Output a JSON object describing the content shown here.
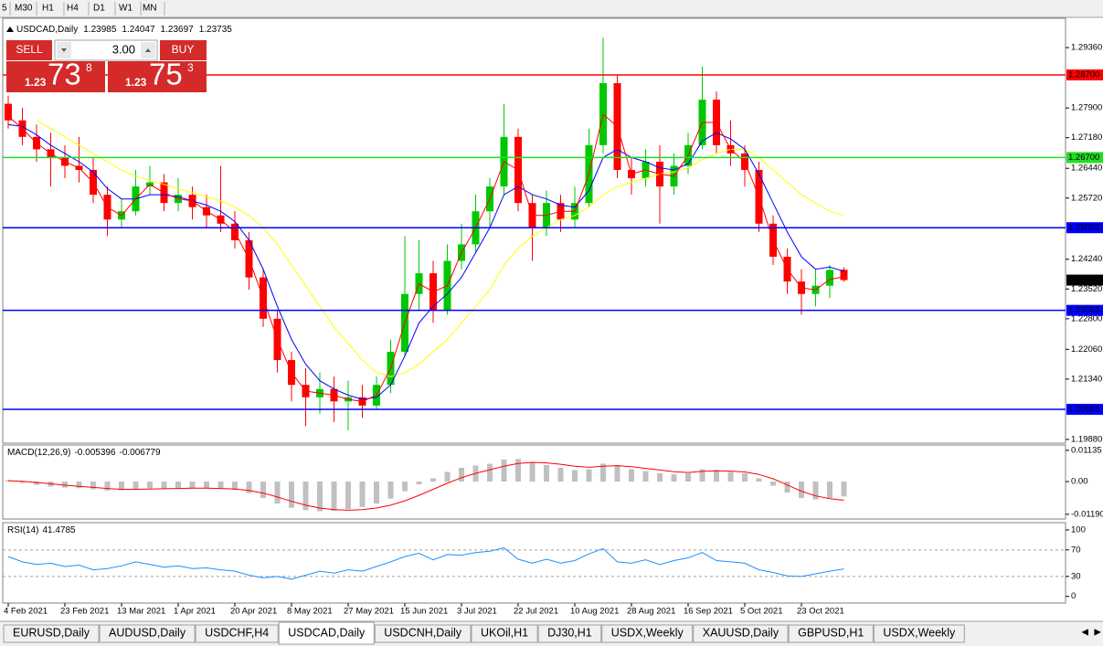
{
  "toolbar": {
    "timeframes": [
      "5",
      "M30",
      "H1",
      "H4",
      "D1",
      "W1",
      "MN"
    ]
  },
  "trade_panel": {
    "sell": "SELL",
    "lots": "3.00",
    "buy": "BUY",
    "bid": {
      "prefix": "1.23",
      "big": "73",
      "small": "8"
    },
    "ask": {
      "prefix": "1.23",
      "big": "75",
      "small": "3"
    }
  },
  "chart_data": [
    {
      "type": "candlestick",
      "symbol": "USDCAD,Daily",
      "categories": [
        "4 Feb 2021",
        null,
        null,
        null,
        "23 Feb 2021",
        null,
        null,
        null,
        "13 Mar 2021",
        null,
        null,
        null,
        "1 Apr 2021",
        null,
        null,
        null,
        "20 Apr 2021",
        null,
        null,
        null,
        "8 May 2021",
        null,
        null,
        null,
        "27 May 2021",
        null,
        null,
        null,
        "15 Jun 2021",
        null,
        null,
        null,
        "3 Jul 2021",
        null,
        null,
        null,
        "22 Jul 2021",
        null,
        null,
        null,
        "10 Aug 2021",
        null,
        null,
        null,
        "28 Aug 2021",
        null,
        null,
        null,
        "16 Sep 2021",
        null,
        null,
        null,
        "5 Oct 2021",
        null,
        null,
        null,
        "23 Oct 2021",
        null,
        null,
        null
      ],
      "open": [
        1.28,
        1.276,
        1.272,
        1.269,
        1.267,
        1.265,
        1.264,
        1.258,
        1.252,
        1.254,
        1.26,
        1.261,
        1.256,
        1.258,
        1.255,
        1.253,
        1.251,
        1.247,
        1.238,
        1.228,
        1.218,
        1.212,
        1.209,
        1.211,
        1.208,
        1.209,
        1.207,
        1.212,
        1.22,
        1.234,
        1.239,
        1.23,
        1.242,
        1.246,
        1.254,
        1.26,
        1.272,
        1.256,
        1.25,
        1.256,
        1.252,
        1.256,
        1.27,
        1.285,
        1.264,
        1.262,
        1.266,
        1.26,
        1.265,
        1.27,
        1.281,
        1.27,
        1.268,
        1.264,
        1.251,
        1.243,
        1.237,
        1.234,
        1.236,
        1.23985
      ],
      "high": [
        1.282,
        1.279,
        1.275,
        1.273,
        1.27,
        1.272,
        1.267,
        1.26,
        1.257,
        1.264,
        1.265,
        1.263,
        1.262,
        1.26,
        1.258,
        1.265,
        1.254,
        1.249,
        1.24,
        1.23,
        1.22,
        1.216,
        1.215,
        1.214,
        1.213,
        1.212,
        1.214,
        1.223,
        1.248,
        1.247,
        1.242,
        1.246,
        1.251,
        1.258,
        1.262,
        1.28,
        1.274,
        1.258,
        1.259,
        1.258,
        1.26,
        1.274,
        1.296,
        1.287,
        1.267,
        1.269,
        1.27,
        1.268,
        1.273,
        1.289,
        1.283,
        1.276,
        1.27,
        1.266,
        1.253,
        1.245,
        1.24,
        1.24,
        1.241,
        1.24047
      ],
      "low": [
        1.274,
        1.27,
        1.266,
        1.26,
        1.262,
        1.261,
        1.256,
        1.248,
        1.25,
        1.253,
        1.258,
        1.254,
        1.254,
        1.252,
        1.25,
        1.249,
        1.245,
        1.235,
        1.226,
        1.215,
        1.208,
        1.202,
        1.205,
        1.203,
        1.201,
        1.204,
        1.206,
        1.21,
        1.219,
        1.23,
        1.227,
        1.229,
        1.24,
        1.244,
        1.25,
        1.258,
        1.254,
        1.242,
        1.248,
        1.249,
        1.25,
        1.255,
        1.268,
        1.262,
        1.258,
        1.26,
        1.251,
        1.258,
        1.263,
        1.269,
        1.268,
        1.265,
        1.26,
        1.249,
        1.241,
        1.234,
        1.229,
        1.231,
        1.233,
        1.23697
      ],
      "close": [
        1.276,
        1.272,
        1.269,
        1.267,
        1.265,
        1.264,
        1.258,
        1.252,
        1.254,
        1.26,
        1.261,
        1.256,
        1.258,
        1.255,
        1.253,
        1.251,
        1.247,
        1.238,
        1.228,
        1.218,
        1.212,
        1.209,
        1.211,
        1.208,
        1.209,
        1.207,
        1.212,
        1.22,
        1.234,
        1.239,
        1.23,
        1.242,
        1.246,
        1.254,
        1.26,
        1.272,
        1.256,
        1.25,
        1.256,
        1.252,
        1.256,
        1.27,
        1.285,
        1.264,
        1.262,
        1.266,
        1.26,
        1.265,
        1.27,
        1.281,
        1.27,
        1.268,
        1.264,
        1.251,
        1.243,
        1.237,
        1.234,
        1.236,
        1.2398,
        1.23735
      ],
      "up_color": "#00c800",
      "down_color": "#ff0000",
      "moving_averages": [
        {
          "color": "#ffff00",
          "values": [
            null,
            null,
            1.276,
            1.274,
            1.272,
            1.27,
            1.268,
            1.266,
            1.264,
            1.2625,
            1.2615,
            1.2605,
            1.2595,
            1.2585,
            1.2575,
            1.2565,
            1.255,
            1.253,
            1.25,
            1.246,
            1.241,
            1.236,
            1.231,
            1.226,
            1.222,
            1.218,
            1.215,
            1.214,
            1.215,
            1.217,
            1.22,
            1.223,
            1.227,
            1.231,
            1.235,
            1.241,
            1.245,
            1.248,
            1.25,
            1.252,
            1.253,
            1.255,
            1.258,
            1.26,
            1.261,
            1.262,
            1.263,
            1.2635,
            1.2645,
            1.2665,
            1.268,
            1.269,
            1.269,
            1.267,
            1.264,
            1.261,
            1.258,
            1.256,
            1.254,
            1.253
          ]
        },
        {
          "color": "#0000ff",
          "values": [
            1.275,
            1.2745,
            1.2725,
            1.27,
            1.268,
            1.266,
            1.2635,
            1.2595,
            1.257,
            1.257,
            1.258,
            1.258,
            1.2575,
            1.2565,
            1.2555,
            1.254,
            1.2515,
            1.247,
            1.24,
            1.231,
            1.223,
            1.217,
            1.213,
            1.211,
            1.2095,
            1.2085,
            1.209,
            1.212,
            1.219,
            1.227,
            1.231,
            1.234,
            1.238,
            1.244,
            1.25,
            1.258,
            1.26,
            1.258,
            1.257,
            1.2555,
            1.255,
            1.259,
            1.267,
            1.269,
            1.267,
            1.266,
            1.2645,
            1.264,
            1.2655,
            1.271,
            1.273,
            1.2715,
            1.269,
            1.263,
            1.256,
            1.249,
            1.243,
            1.24,
            1.2405,
            1.2395
          ]
        },
        {
          "color": "#ff0000",
          "values": [
            1.277,
            1.274,
            1.2705,
            1.268,
            1.266,
            1.2645,
            1.261,
            1.255,
            1.253,
            1.257,
            1.2605,
            1.2585,
            1.257,
            1.2565,
            1.254,
            1.252,
            1.249,
            1.2425,
            1.233,
            1.223,
            1.215,
            1.2105,
            1.21,
            1.2095,
            1.2085,
            1.208,
            1.2095,
            1.216,
            1.227,
            1.2365,
            1.2345,
            1.236,
            1.244,
            1.25,
            1.257,
            1.266,
            1.264,
            1.253,
            1.253,
            1.254,
            1.254,
            1.263,
            1.2775,
            1.2745,
            1.263,
            1.264,
            1.263,
            1.2625,
            1.2675,
            1.2755,
            1.2755,
            1.269,
            1.266,
            1.2575,
            1.247,
            1.24,
            1.2355,
            1.235,
            1.2375,
            1.2382
          ]
        }
      ],
      "levels": [
        {
          "value": 1.287,
          "label": "1.28700",
          "color": "#ff0000"
        },
        {
          "value": 1.267,
          "label": "1.26700",
          "color": "#22dd22"
        },
        {
          "value": 1.25003,
          "color": "#0000ff"
        },
        {
          "value": 1.23003,
          "color": "#0000ff"
        },
        {
          "value": 1.20609,
          "color": "#0000ff"
        }
      ],
      "ylim": [
        1.1979,
        1.3007
      ],
      "yticks": [
        {
          "value": 1.2936,
          "label": "1.29360"
        },
        {
          "value": 1.279,
          "label": "1.27900"
        },
        {
          "value": 1.2718,
          "label": "1.27180"
        },
        {
          "value": 1.2644,
          "label": "1.26440"
        },
        {
          "value": 1.2572,
          "label": "1.25720"
        },
        {
          "value": 1.2424,
          "label": "1.24240"
        },
        {
          "value": 1.2352,
          "label": "1.23520"
        },
        {
          "value": 1.228,
          "label": "1.22800"
        },
        {
          "value": 1.2206,
          "label": "1.22060"
        },
        {
          "value": 1.2134,
          "label": "1.21340"
        },
        {
          "value": 1.1988,
          "label": "1.19880"
        }
      ]
    },
    {
      "type": "macd",
      "title": "MACD(12,26,9)",
      "color": "#c0c0c0",
      "signal_color": "#ff0000",
      "values": [
        0.0005,
        -0.0005,
        -0.0012,
        -0.0018,
        -0.0022,
        -0.0024,
        -0.0028,
        -0.0033,
        -0.0032,
        -0.0028,
        -0.0025,
        -0.0026,
        -0.0024,
        -0.0024,
        -0.0025,
        -0.0026,
        -0.003,
        -0.0042,
        -0.006,
        -0.008,
        -0.0095,
        -0.0104,
        -0.0108,
        -0.0106,
        -0.01,
        -0.0092,
        -0.008,
        -0.0062,
        -0.0035,
        -0.001,
        0.0012,
        0.0035,
        0.005,
        0.0058,
        0.0065,
        0.008,
        0.0082,
        0.007,
        0.006,
        0.005,
        0.0042,
        0.0045,
        0.0065,
        0.006,
        0.0045,
        0.0038,
        0.003,
        0.0026,
        0.003,
        0.0045,
        0.0042,
        0.0035,
        0.003,
        0.0012,
        -0.0015,
        -0.004,
        -0.006,
        -0.0065,
        -0.006,
        -0.005396
      ],
      "signal": [
        0.0003,
        0.0001,
        -0.0003,
        -0.0008,
        -0.0013,
        -0.0017,
        -0.0021,
        -0.0025,
        -0.0028,
        -0.0028,
        -0.0027,
        -0.0026,
        -0.0025,
        -0.0024,
        -0.0024,
        -0.0025,
        -0.0027,
        -0.0032,
        -0.0042,
        -0.0056,
        -0.0072,
        -0.0086,
        -0.0096,
        -0.0102,
        -0.0104,
        -0.0102,
        -0.0096,
        -0.0086,
        -0.007,
        -0.005,
        -0.0028,
        -0.0006,
        0.0014,
        0.003,
        0.0043,
        0.0056,
        0.0066,
        0.007,
        0.0068,
        0.0063,
        0.0056,
        0.0052,
        0.0056,
        0.0058,
        0.0054,
        0.0048,
        0.0042,
        0.0036,
        0.0033,
        0.0037,
        0.0039,
        0.0038,
        0.0035,
        0.0026,
        0.001,
        -0.0012,
        -0.0035,
        -0.0052,
        -0.0062,
        -0.006779
      ],
      "ylim": [
        -0.0136,
        0.0133
      ],
      "yticks": [
        0.01135,
        {
          "value": 0,
          "label": "0.00"
        },
        {
          "value": -0.0119,
          "label": "-0.01190"
        }
      ]
    },
    {
      "type": "rsi",
      "title": "RSI(14)",
      "color": "#1e90ff",
      "values": [
        60,
        52,
        48,
        50,
        45,
        47,
        40,
        42,
        46,
        52,
        48,
        44,
        46,
        42,
        43,
        40,
        38,
        32,
        28,
        30,
        26,
        32,
        38,
        35,
        40,
        38,
        45,
        52,
        60,
        65,
        55,
        63,
        62,
        66,
        68,
        73,
        56,
        50,
        56,
        50,
        54,
        64,
        72,
        52,
        50,
        55,
        48,
        54,
        58,
        66,
        54,
        52,
        50,
        40,
        36,
        31,
        30,
        34,
        38,
        41.4785
      ],
      "levels": [
        70,
        30
      ],
      "ylim": [
        -10,
        111
      ],
      "yticks": [
        100,
        70,
        30,
        0
      ]
    }
  ],
  "tabs": {
    "items": [
      "EURUSD,Daily",
      "AUDUSD,Daily",
      "USDCHF,H4",
      "USDCAD,Daily",
      "USDCNH,Daily",
      "UKOil,H1",
      "DJ30,H1",
      "USDX,Weekly",
      "XAUUSD,Daily",
      "GBPUSD,H1",
      "USDX,Weekly"
    ],
    "active": 3
  }
}
